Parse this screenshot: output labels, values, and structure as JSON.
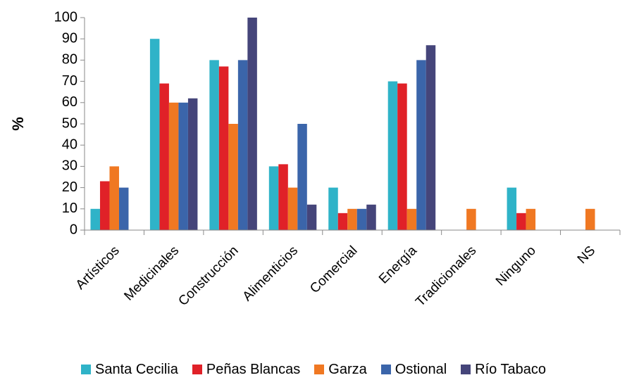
{
  "chart_data": {
    "type": "bar",
    "ylabel": "%",
    "ylim": [
      0,
      100
    ],
    "yticks": [
      "0",
      "10",
      "20",
      "30",
      "40",
      "50",
      "60",
      "70",
      "80",
      "90",
      "100"
    ],
    "categories": [
      "Artísticos",
      "Medicinales",
      "Construcción",
      "Alimenticios",
      "Comercial",
      "Energía",
      "Tradicionales",
      "Ninguno",
      "NS"
    ],
    "series": [
      {
        "name": "Santa Cecilia",
        "color": "#2fb3c8",
        "values": [
          10,
          90,
          80,
          30,
          20,
          70,
          0,
          20,
          0
        ]
      },
      {
        "name": "Peñas Blancas",
        "color": "#e02128",
        "values": [
          23,
          69,
          77,
          31,
          8,
          69,
          0,
          8,
          0
        ]
      },
      {
        "name": "Garza",
        "color": "#f07822",
        "values": [
          30,
          60,
          50,
          20,
          10,
          10,
          10,
          10,
          10
        ]
      },
      {
        "name": "Ostional",
        "color": "#3b65aa",
        "values": [
          20,
          60,
          80,
          50,
          10,
          80,
          0,
          0,
          0
        ]
      },
      {
        "name": "Río Tabaco",
        "color": "#45457a",
        "values": [
          0,
          62,
          100,
          12,
          12,
          87,
          0,
          0,
          0
        ]
      }
    ],
    "legend_position": "bottom",
    "grid": false
  }
}
